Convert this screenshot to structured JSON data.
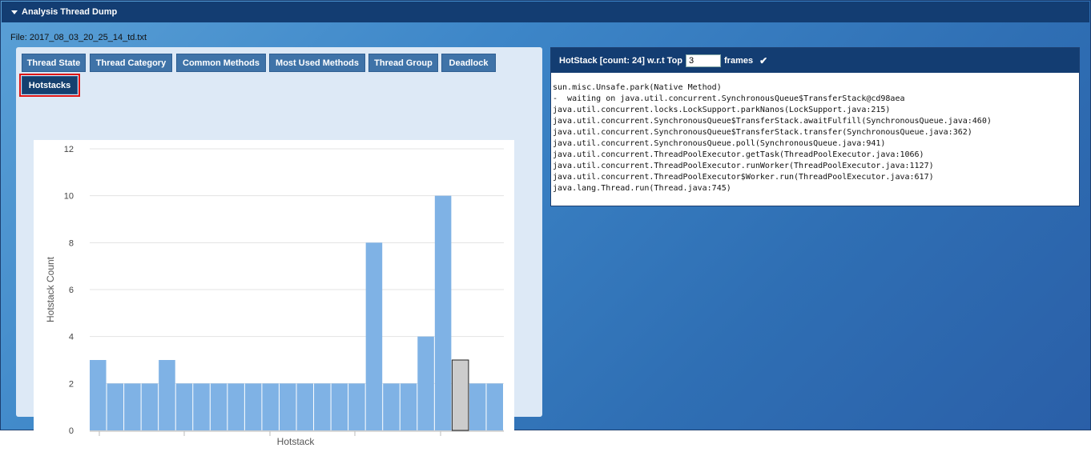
{
  "panel": {
    "title": "Analysis Thread Dump"
  },
  "file": {
    "label": "File: 2017_08_03_20_25_14_td.txt"
  },
  "tabs": [
    {
      "label": "Thread State"
    },
    {
      "label": "Thread Category"
    },
    {
      "label": "Common Methods"
    },
    {
      "label": "Most Used Methods"
    },
    {
      "label": "Thread Group"
    },
    {
      "label": "Deadlock"
    },
    {
      "label": "Hotstacks"
    }
  ],
  "hotstack": {
    "prefix": "HotStack [count: 24] w.r.t Top",
    "top_value": "3",
    "suffix": "frames",
    "lines": [
      "sun.misc.Unsafe.park(Native Method)",
      "-  waiting on java.util.concurrent.SynchronousQueue$TransferStack@cd98aea",
      "java.util.concurrent.locks.LockSupport.parkNanos(LockSupport.java:215)",
      "java.util.concurrent.SynchronousQueue$TransferStack.awaitFulfill(SynchronousQueue.java:460)",
      "java.util.concurrent.SynchronousQueue$TransferStack.transfer(SynchronousQueue.java:362)",
      "java.util.concurrent.SynchronousQueue.poll(SynchronousQueue.java:941)",
      "java.util.concurrent.ThreadPoolExecutor.getTask(ThreadPoolExecutor.java:1066)",
      "java.util.concurrent.ThreadPoolExecutor.runWorker(ThreadPoolExecutor.java:1127)",
      "java.util.concurrent.ThreadPoolExecutor$Worker.run(ThreadPoolExecutor.java:617)",
      "java.lang.Thread.run(Thread.java:745)"
    ]
  },
  "chart_data": {
    "type": "bar",
    "xlabel": "Hotstack",
    "ylabel": "Hotstack Count",
    "ylim": [
      0,
      12
    ],
    "yticks": [
      0,
      2,
      4,
      6,
      8,
      10,
      12
    ],
    "values": [
      3,
      2,
      2,
      2,
      3,
      2,
      2,
      2,
      2,
      2,
      2,
      2,
      2,
      2,
      2,
      2,
      8,
      2,
      2,
      4,
      10,
      3,
      2,
      2
    ],
    "selected_index": 21,
    "bar_color": "#7fb2e5",
    "selected_color": "#cccccc",
    "grid": true
  }
}
